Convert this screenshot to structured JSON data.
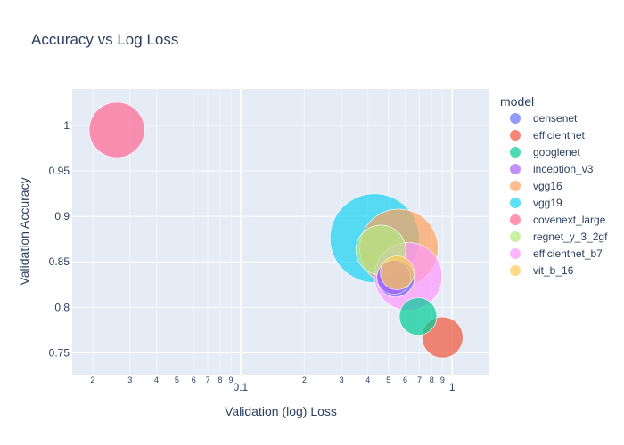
{
  "chart_data": {
    "type": "scatter",
    "title": "Accuracy vs Log Loss",
    "xlabel": "Validation (log) Loss",
    "ylabel": "Validation Accuracy",
    "x_scale": "log",
    "xlim": [
      0.016,
      1.5
    ],
    "ylim": [
      0.726,
      1.04
    ],
    "y_ticks": [
      0.75,
      0.8,
      0.85,
      0.9,
      0.95,
      1
    ],
    "y_tick_labels": [
      "0.75",
      "0.8",
      "0.85",
      "0.9",
      "0.95",
      "1"
    ],
    "x_major_ticks": [
      {
        "value": 0.1,
        "label": "0.1"
      },
      {
        "value": 1,
        "label": "1"
      }
    ],
    "x_minor_ticks": [
      {
        "value": 0.02,
        "label": "2"
      },
      {
        "value": 0.03,
        "label": "3"
      },
      {
        "value": 0.04,
        "label": "4"
      },
      {
        "value": 0.05,
        "label": "5"
      },
      {
        "value": 0.06,
        "label": "6"
      },
      {
        "value": 0.07,
        "label": "7"
      },
      {
        "value": 0.08,
        "label": "8"
      },
      {
        "value": 0.09,
        "label": "9"
      },
      {
        "value": 0.2,
        "label": "2"
      },
      {
        "value": 0.3,
        "label": "3"
      },
      {
        "value": 0.4,
        "label": "4"
      },
      {
        "value": 0.5,
        "label": "5"
      },
      {
        "value": 0.6,
        "label": "6"
      },
      {
        "value": 0.7,
        "label": "7"
      },
      {
        "value": 0.8,
        "label": "8"
      },
      {
        "value": 0.9,
        "label": "9"
      }
    ],
    "grid": true,
    "bubble_size_meaning": "relative marker size",
    "legend_title": "model",
    "legend_position": "right",
    "series": [
      {
        "name": "densenet",
        "color": "#636efa",
        "x": 0.54,
        "y": 0.832,
        "size": 0.42
      },
      {
        "name": "efficientnet",
        "color": "#ef553b",
        "x": 0.9,
        "y": 0.767,
        "size": 0.46
      },
      {
        "name": "googlenet",
        "color": "#00cc96",
        "x": 0.69,
        "y": 0.79,
        "size": 0.42
      },
      {
        "name": "inception_v3",
        "color": "#ab63fa",
        "x": 0.53,
        "y": 0.833,
        "size": 0.38
      },
      {
        "name": "vgg16",
        "color": "#ffa15a",
        "x": 0.56,
        "y": 0.865,
        "size": 0.88
      },
      {
        "name": "vgg19",
        "color": "#19d3f3",
        "x": 0.43,
        "y": 0.876,
        "size": 1.0
      },
      {
        "name": "covenext_large",
        "color": "#ff6692",
        "x": 0.026,
        "y": 0.995,
        "size": 0.62
      },
      {
        "name": "regnet_y_3_2gf",
        "color": "#b6e880",
        "x": 0.46,
        "y": 0.863,
        "size": 0.56
      },
      {
        "name": "efficientnet_b7",
        "color": "#ff97ff",
        "x": 0.62,
        "y": 0.834,
        "size": 0.76
      },
      {
        "name": "vit_b_16",
        "color": "#fecb52",
        "x": 0.55,
        "y": 0.838,
        "size": 0.38
      }
    ]
  }
}
